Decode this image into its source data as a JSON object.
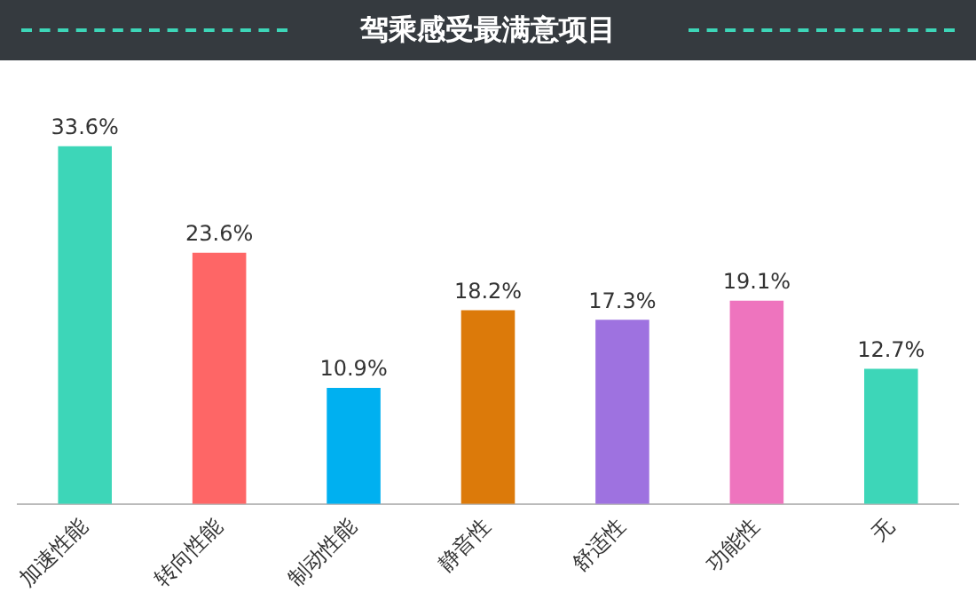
{
  "chart_data": {
    "type": "bar",
    "title": "驾乘感受最满意项目",
    "categories": [
      "加速性能",
      "转向性能",
      "制动性能",
      "静音性",
      "舒适性",
      "功能性",
      "无"
    ],
    "values": [
      33.6,
      23.6,
      10.9,
      18.2,
      17.3,
      19.1,
      12.7
    ],
    "colors": [
      "#3dd6b8",
      "#fe6666",
      "#00b0f0",
      "#dc7a0a",
      "#9e72e0",
      "#ee74be",
      "#3dd6b8"
    ],
    "value_labels": [
      "33.6%",
      "23.6%",
      "10.9%",
      "18.2%",
      "17.3%",
      "19.1%",
      "12.7%"
    ],
    "grid": false,
    "legend": false
  }
}
